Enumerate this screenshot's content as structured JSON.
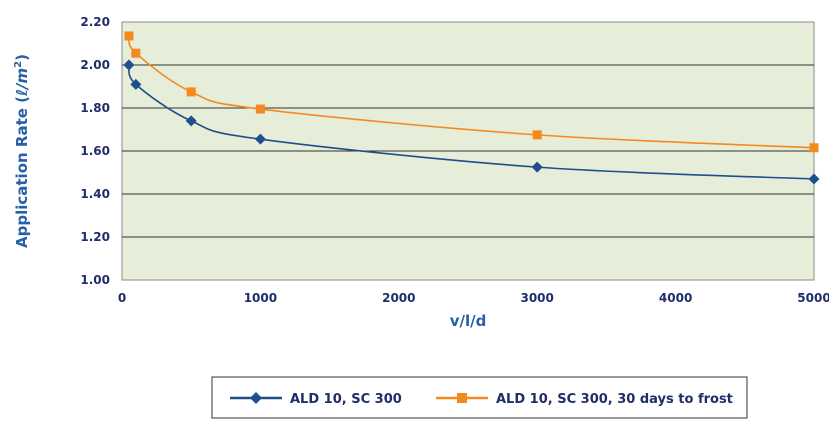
{
  "chart_data": {
    "type": "line",
    "title": "",
    "xlabel": "v/l/d",
    "ylabel_main": "Application Rate (",
    "ylabel_unit": "ℓ/m",
    "ylabel_sup": "2",
    "ylabel_close": ")",
    "xlim": [
      0,
      5000
    ],
    "ylim": [
      1.0,
      2.2
    ],
    "x_ticks": [
      "0",
      "1000",
      "2000",
      "3000",
      "4000",
      "5000"
    ],
    "y_ticks": [
      "1.00",
      "1.20",
      "1.40",
      "1.60",
      "1.80",
      "2.00",
      "2.20"
    ],
    "grid": "horizontal",
    "legend_position": "bottom",
    "series": [
      {
        "name": "ALD 10, SC 300",
        "color": "#1f4e8c",
        "marker": "diamond",
        "x": [
          50,
          100,
          500,
          1000,
          3000,
          5000
        ],
        "y": [
          2.0,
          1.91,
          1.74,
          1.655,
          1.525,
          1.47
        ]
      },
      {
        "name": "ALD 10, SC 300, 30 days to frost",
        "color": "#f5891f",
        "marker": "square",
        "x": [
          50,
          100,
          500,
          1000,
          3000,
          5000
        ],
        "y": [
          2.135,
          2.055,
          1.875,
          1.795,
          1.675,
          1.615
        ]
      }
    ]
  }
}
